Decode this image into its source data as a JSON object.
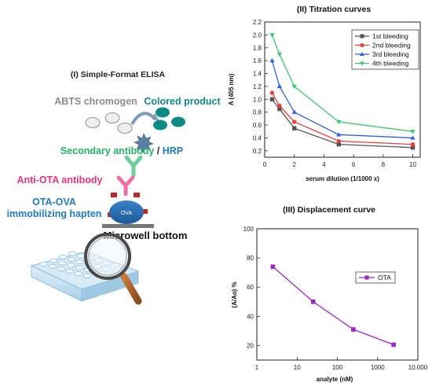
{
  "colors": {
    "gray": "#8c8c8c",
    "teal": "#0e8a84",
    "green": "#25b36a",
    "blue_text": "#1f7bbf",
    "pink": "#e8317f",
    "ova_blue": "#2c6fb3",
    "bleed1": "#555555",
    "bleed2": "#e8403a",
    "bleed3": "#2f62e0",
    "bleed4": "#39c96b",
    "ota_purple": "#9b27c4"
  },
  "elisa": {
    "title": "(I) Simple-Format ELISA",
    "abts_label": "ABTS chromogen",
    "colored_label": "Colored product",
    "secondary_label": "Secondary antibody",
    "slash": " / ",
    "hrp_label": "HRP",
    "anti_ota_label": "Anti-OTA antibody",
    "ota_ova_label": "OTA-OVA",
    "immobilizing_label": "immobilizing hapten",
    "ova_text": "OVA",
    "microwell_label": "Microwell bottom"
  },
  "chart_data": [
    {
      "type": "line",
      "title": "(II) Titration curves",
      "xlabel": "serum dilution (1/1000 x)",
      "ylabel": "A (405 nm)",
      "xlim": [
        0,
        10.5
      ],
      "ylim": [
        0.1,
        2.2
      ],
      "xticks": [
        0,
        2,
        4,
        6,
        8,
        10
      ],
      "yticks": [
        0.2,
        0.4,
        0.6,
        0.8,
        1.0,
        1.2,
        1.4,
        1.6,
        1.8,
        2.0,
        2.2
      ],
      "ytick_labels": [
        "0.2",
        "0.4",
        "0.6",
        "0.8",
        "1.0",
        "1.2",
        "1.4",
        "1.6",
        "1.8",
        "2.0",
        "2.2"
      ],
      "legend_position": "top-right",
      "x": [
        0.5,
        1,
        2,
        5,
        10
      ],
      "series": [
        {
          "name": "1st bleeding",
          "values": [
            1.0,
            0.85,
            0.55,
            0.3,
            0.25
          ],
          "color": "#555555",
          "marker": "square"
        },
        {
          "name": "2nd bleeding",
          "values": [
            1.1,
            0.9,
            0.65,
            0.35,
            0.3
          ],
          "color": "#e8403a",
          "marker": "circle"
        },
        {
          "name": "3rd bleeding",
          "values": [
            1.6,
            1.2,
            0.8,
            0.45,
            0.4
          ],
          "color": "#2f62e0",
          "marker": "triangle-up"
        },
        {
          "name": "4th bleeding",
          "values": [
            2.0,
            1.7,
            1.2,
            0.65,
            0.5
          ],
          "color": "#39c96b",
          "marker": "triangle-down"
        }
      ]
    },
    {
      "type": "line",
      "title": "(III) Displacement curve",
      "xlabel": "analyte (nM)",
      "ylabel": "(A/Ao) %",
      "x_scale": "log",
      "xlim": [
        1,
        10000
      ],
      "ylim": [
        10,
        100
      ],
      "xticks": [
        1,
        10,
        100,
        1000,
        10000
      ],
      "xtick_labels": [
        "1",
        "10",
        "100",
        "1000",
        "10,000"
      ],
      "yticks": [
        20,
        40,
        60,
        80,
        100
      ],
      "legend_position": "center",
      "x": [
        2.5,
        25,
        250,
        2500
      ],
      "series": [
        {
          "name": "OTA",
          "values": [
            74,
            50,
            31,
            20.5
          ],
          "color": "#9b27c4",
          "marker": "square"
        }
      ]
    }
  ]
}
